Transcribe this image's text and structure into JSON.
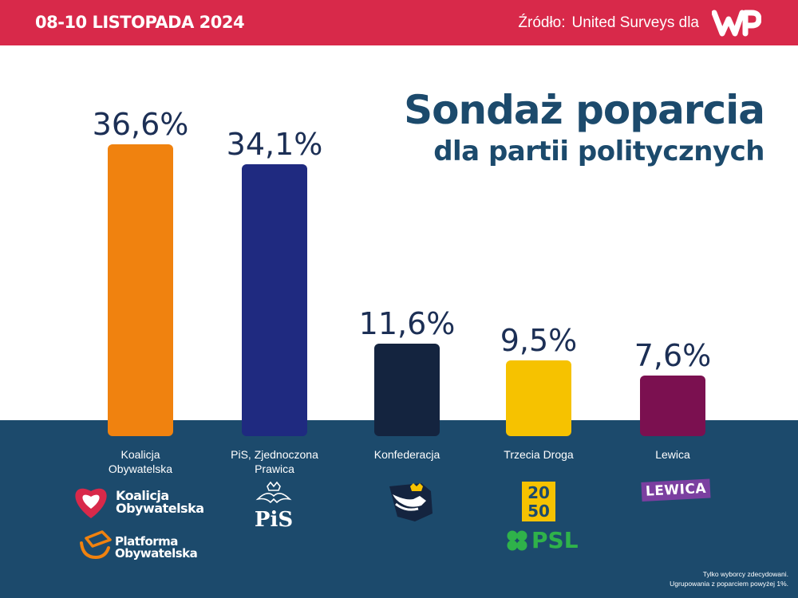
{
  "header": {
    "date": "08-10 LISTOPADA 2024",
    "source_label": "Źródło:",
    "source_text": "United Surveys dla",
    "brand": "WP"
  },
  "title": {
    "line1": "Sondaż poparcia",
    "line2": "dla partii politycznych"
  },
  "chart_data": {
    "type": "bar",
    "title": "Sondaż poparcia dla partii politycznych",
    "categories": [
      "Koalicja Obywatelska",
      "PiS, Zjednoczona Prawica",
      "Konfederacja",
      "Trzecia Droga",
      "Lewica"
    ],
    "values": [
      36.6,
      34.1,
      11.6,
      9.5,
      7.6
    ],
    "value_labels": [
      "36,6%",
      "34,1%",
      "11,6%",
      "9,5%",
      "7,6%"
    ],
    "colors": [
      "#f0820f",
      "#1f2a80",
      "#14243f",
      "#f6c200",
      "#7b1050"
    ],
    "ylim": [
      0,
      40
    ],
    "xlabel": "",
    "ylabel": "",
    "grid": false
  },
  "category_labels": {
    "ko": [
      "Koalicja",
      "Obywatelska"
    ],
    "pis": [
      "PiS, Zjednoczona",
      "Prawica"
    ],
    "konf": [
      "Konfederacja"
    ],
    "td": [
      "Trzecia Droga"
    ],
    "lewica": [
      "Lewica"
    ]
  },
  "logos": {
    "ko": [
      "Koalicja",
      "Obywatelska"
    ],
    "po": [
      "Platforma",
      "Obywatelska"
    ],
    "pis": "PiS",
    "td_2050": [
      "20",
      "50"
    ],
    "psl": "PSL",
    "lewica": "LEWICA"
  },
  "footnote": {
    "line1": "Tylko wyborcy zdecydowani.",
    "line2": "Ugrupowania z poparciem powyżej 1%."
  }
}
